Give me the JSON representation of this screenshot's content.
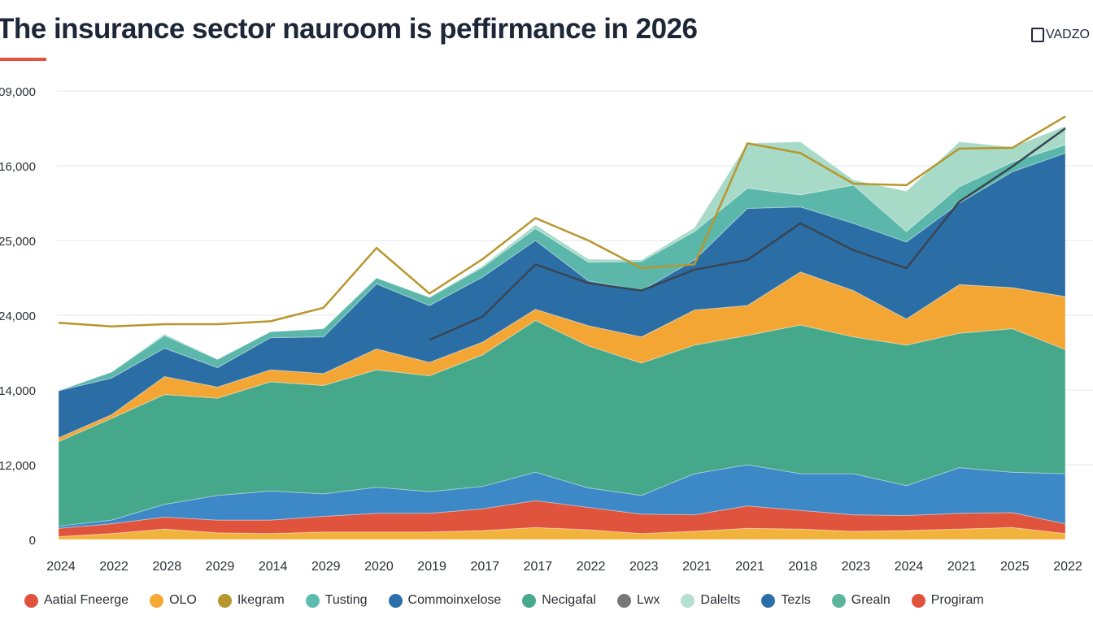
{
  "title": "The insurance sector nauroom is peffirmance in 2026",
  "logo": {
    "text": "VADZO"
  },
  "colors": {
    "title": "#1d2738",
    "accent": "#e0533c",
    "grid": "#e3e5e8"
  },
  "chart_data": {
    "type": "area",
    "stacked": true,
    "title": "The insurance sector nauroom is peffirmance in 2026",
    "ylabel_ticks": [
      "0",
      "12,000",
      "14,000",
      "24,000",
      "25,000",
      "16,000",
      "09,000"
    ],
    "ylim": [
      0,
      6
    ],
    "grid": true,
    "legend_placement": "bottom",
    "categories": [
      "2024",
      "2022",
      "2028",
      "2029",
      "2014",
      "2029",
      "2020",
      "2019",
      "2017",
      "2017",
      "2022",
      "2023",
      "2021",
      "2021",
      "2018",
      "2023",
      "2024",
      "2021",
      "2025",
      "2022"
    ],
    "series": [
      {
        "color": "#f2b33d",
        "values": [
          0.04,
          0.08,
          0.14,
          0.09,
          0.08,
          0.1,
          0.1,
          0.1,
          0.12,
          0.16,
          0.13,
          0.08,
          0.11,
          0.15,
          0.14,
          0.11,
          0.12,
          0.14,
          0.16,
          0.08
        ]
      },
      {
        "color": "#e0533c",
        "values": [
          0.11,
          0.13,
          0.16,
          0.17,
          0.18,
          0.21,
          0.25,
          0.25,
          0.29,
          0.36,
          0.3,
          0.26,
          0.22,
          0.3,
          0.25,
          0.22,
          0.2,
          0.21,
          0.2,
          0.13
        ]
      },
      {
        "color": "#3d88c6",
        "values": [
          0.03,
          0.05,
          0.17,
          0.33,
          0.39,
          0.3,
          0.35,
          0.29,
          0.3,
          0.38,
          0.26,
          0.25,
          0.55,
          0.55,
          0.49,
          0.55,
          0.4,
          0.61,
          0.54,
          0.67
        ]
      },
      {
        "color": "#46a88a",
        "values": [
          1.13,
          1.36,
          1.47,
          1.3,
          1.46,
          1.45,
          1.57,
          1.55,
          1.76,
          2.03,
          1.9,
          1.77,
          1.72,
          1.73,
          1.99,
          1.83,
          1.88,
          1.8,
          1.92,
          1.66
        ]
      },
      {
        "color": "#f3a634",
        "values": [
          0.05,
          0.05,
          0.24,
          0.15,
          0.16,
          0.16,
          0.28,
          0.18,
          0.17,
          0.15,
          0.27,
          0.35,
          0.47,
          0.4,
          0.71,
          0.62,
          0.35,
          0.65,
          0.55,
          0.71
        ]
      },
      {
        "color": "#2b6ea6",
        "values": [
          0.63,
          0.49,
          0.38,
          0.26,
          0.43,
          0.49,
          0.87,
          0.76,
          0.87,
          0.92,
          0.6,
          0.62,
          0.67,
          1.3,
          0.87,
          0.9,
          1.03,
          1.09,
          1.55,
          1.92
        ]
      },
      {
        "color": "#5ab7aa",
        "values": [
          0,
          0.08,
          0.17,
          0.11,
          0.08,
          0.11,
          0.08,
          0.11,
          0.13,
          0.16,
          0.25,
          0.39,
          0.38,
          0.27,
          0.16,
          0.51,
          0.14,
          0.22,
          0.13,
          0.11
        ]
      },
      {
        "color": "#a8dac8",
        "values": [
          0,
          0,
          0.02,
          0,
          0,
          0,
          0,
          0,
          0.02,
          0.05,
          0.04,
          0.02,
          0.05,
          0.6,
          0.71,
          0.07,
          0.54,
          0.6,
          0.2,
          0.25
        ]
      }
    ],
    "lines": [
      {
        "color": "#b8962e",
        "values": [
          2.9,
          2.85,
          2.88,
          2.88,
          2.92,
          3.1,
          3.9,
          3.29,
          3.75,
          4.3,
          4.0,
          3.63,
          3.68,
          5.3,
          5.17,
          4.76,
          4.74,
          5.23,
          5.24,
          5.66
        ]
      },
      {
        "color": "#3a4552",
        "values": [
          null,
          null,
          null,
          null,
          null,
          null,
          null,
          2.67,
          2.98,
          3.68,
          3.43,
          3.33,
          3.61,
          3.74,
          4.23,
          3.87,
          3.63,
          4.52,
          4.99,
          5.5
        ]
      }
    ],
    "legend": [
      {
        "label": "Aatial Fneerge",
        "color": "#e0533c"
      },
      {
        "label": "OLO",
        "color": "#f5a833"
      },
      {
        "label": "Ikegram",
        "color": "#b8962e"
      },
      {
        "label": "Tusting",
        "color": "#5bbcaf"
      },
      {
        "label": "Commoinxelose",
        "color": "#2a6fa8"
      },
      {
        "label": "Necigafal",
        "color": "#48a98c"
      },
      {
        "label": "Lwx",
        "color": "#777777"
      },
      {
        "label": "Dalelts",
        "color": "#b5dfcf"
      },
      {
        "label": "Tezls",
        "color": "#2a6fa8"
      },
      {
        "label": "Grealn",
        "color": "#5cb59c"
      },
      {
        "label": "Progiram",
        "color": "#e0533c"
      }
    ]
  }
}
